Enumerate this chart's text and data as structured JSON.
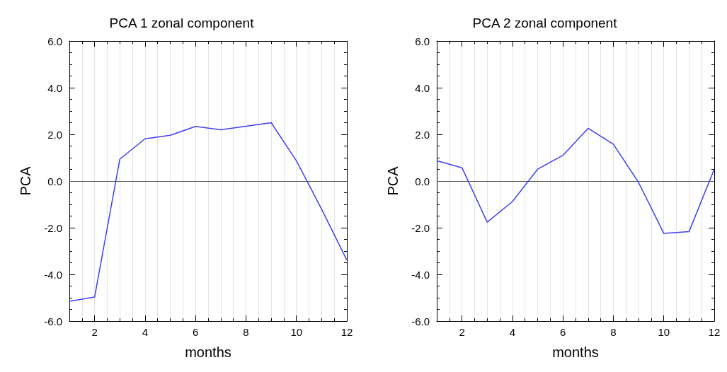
{
  "chart_data": [
    {
      "type": "line",
      "title": "PCA 1 zonal component",
      "xlabel": "months",
      "ylabel": "PCA",
      "x": [
        1,
        2,
        3,
        4,
        5,
        6,
        7,
        8,
        9,
        10,
        11,
        12
      ],
      "series": [
        {
          "color": "#3f3ff5",
          "values": [
            -5.15,
            -4.97,
            0.94,
            1.81,
            1.96,
            2.34,
            2.2,
            2.35,
            2.5,
            0.87,
            -1.21,
            -3.39
          ]
        }
      ],
      "xlim": [
        1,
        12
      ],
      "xticks": [
        2,
        4,
        6,
        8,
        10,
        12
      ],
      "ylim": [
        -6,
        6
      ],
      "yticks": [
        {
          "value": -6,
          "label": "-6.0"
        },
        {
          "value": -4,
          "label": "-4.0"
        },
        {
          "value": -2,
          "label": "-2.0"
        },
        {
          "value": 0,
          "label": "0.0"
        },
        {
          "value": 2,
          "label": "2.0"
        },
        {
          "value": 4,
          "label": "4.0"
        },
        {
          "value": 6,
          "label": "6.0"
        }
      ],
      "ref_lines": [
        {
          "axis": "y",
          "value": 0,
          "color": "#555555"
        }
      ],
      "grid": "x",
      "marker": "none",
      "line_style": "solid"
    },
    {
      "type": "line",
      "title": "PCA 2 zonal component",
      "xlabel": "months",
      "ylabel": "PCA",
      "x": [
        1,
        2,
        3,
        4,
        5,
        6,
        7,
        8,
        9,
        10,
        11,
        12
      ],
      "series": [
        {
          "color": "#3f3ff5",
          "values": [
            0.87,
            0.57,
            -1.76,
            -0.88,
            0.51,
            1.1,
            2.26,
            1.58,
            -0.06,
            -2.24,
            -2.17,
            0.51
          ]
        }
      ],
      "xlim": [
        1,
        12
      ],
      "xticks": [
        2,
        4,
        6,
        8,
        10,
        12
      ],
      "ylim": [
        -6,
        6
      ],
      "yticks": [
        {
          "value": -6,
          "label": "-6.0"
        },
        {
          "value": -4,
          "label": "-4.0"
        },
        {
          "value": -2,
          "label": "-2.0"
        },
        {
          "value": 0,
          "label": "0.0"
        },
        {
          "value": 2,
          "label": "2.0"
        },
        {
          "value": 4,
          "label": "4.0"
        },
        {
          "value": 6,
          "label": "6.0"
        }
      ],
      "ref_lines": [
        {
          "axis": "y",
          "value": 0,
          "color": "#555555"
        }
      ],
      "grid": "x",
      "marker": "none",
      "line_style": "solid"
    }
  ]
}
